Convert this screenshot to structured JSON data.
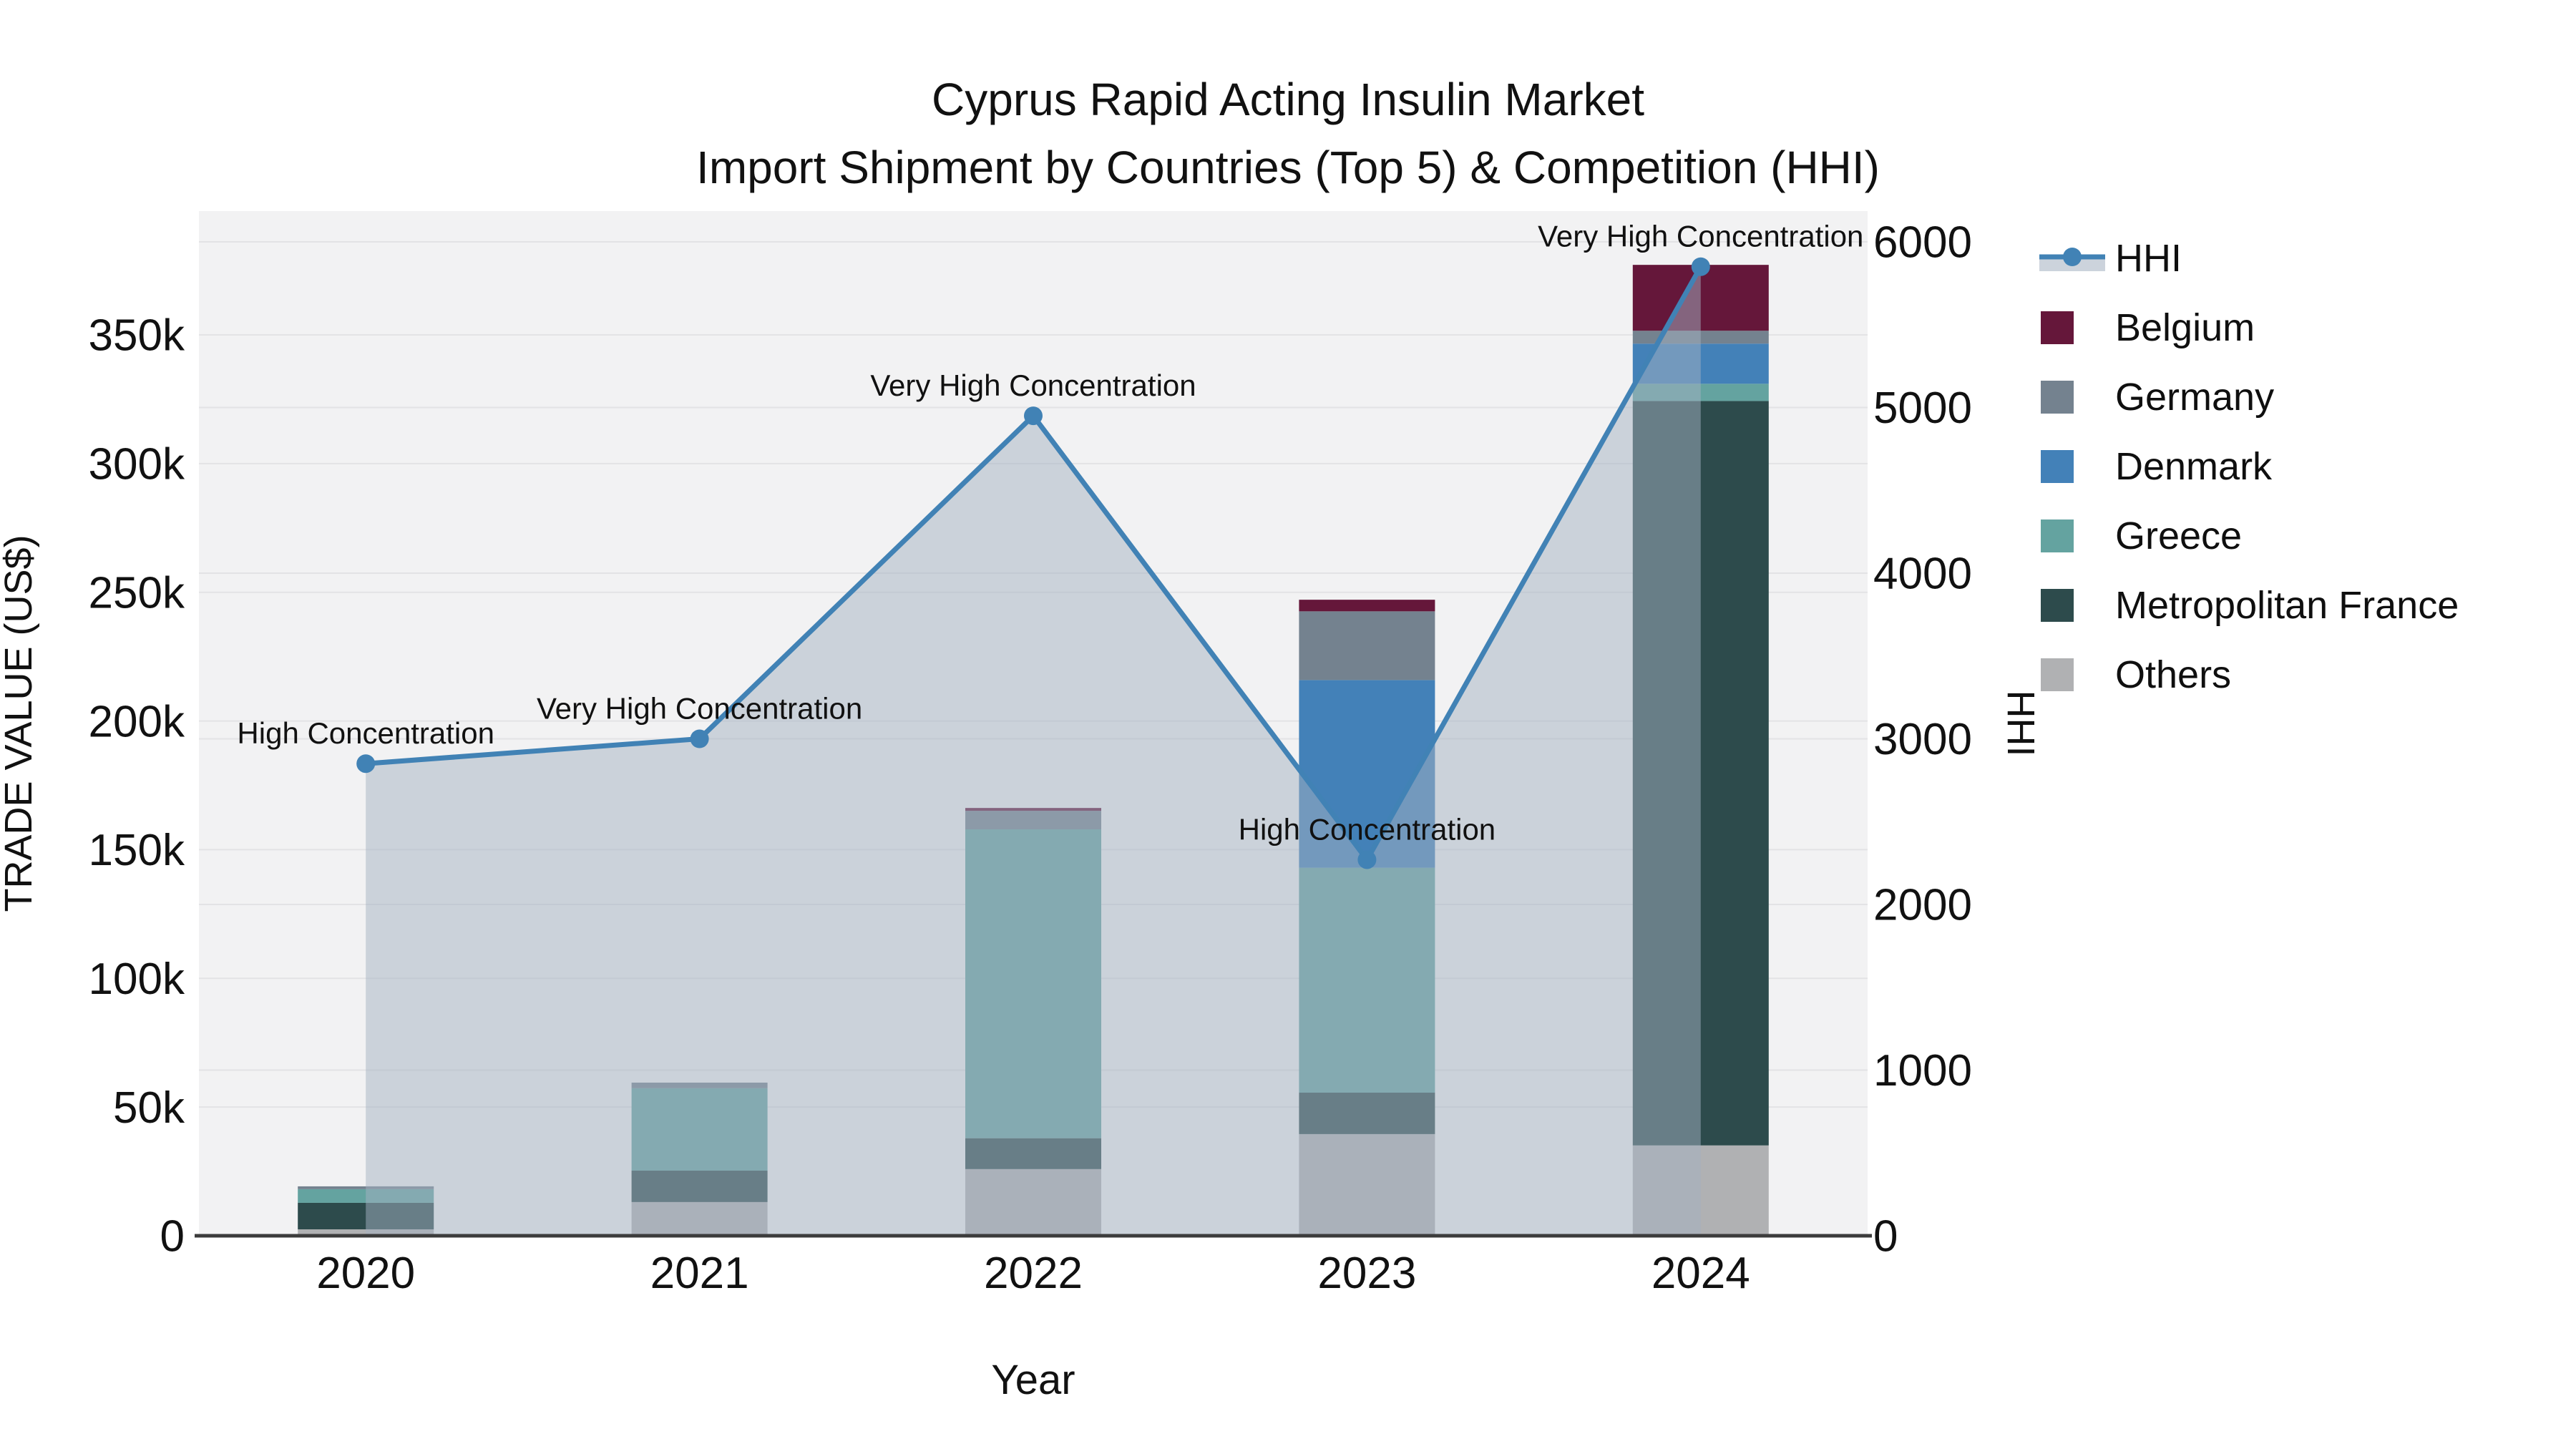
{
  "title": {
    "line1": "Cyprus Rapid Acting Insulin Market",
    "line2": "Import Shipment by Countries (Top 5) & Competition (HHI)"
  },
  "axes": {
    "x_label": "Year",
    "y_left_label": "TRADE VALUE (US$)",
    "y_right_label": "HHI",
    "x_ticks": [
      "2020",
      "2021",
      "2022",
      "2023",
      "2024"
    ],
    "y_left_ticks": [
      "0",
      "50k",
      "100k",
      "150k",
      "200k",
      "250k",
      "300k",
      "350k"
    ],
    "y_right_ticks": [
      "0",
      "1000",
      "2000",
      "3000",
      "4000",
      "5000",
      "6000"
    ]
  },
  "legend": {
    "items": [
      {
        "label": "HHI",
        "type": "line"
      },
      {
        "label": "Belgium",
        "type": "swatch",
        "color": "#65173a"
      },
      {
        "label": "Germany",
        "type": "swatch",
        "color": "#74828f"
      },
      {
        "label": "Denmark",
        "type": "swatch",
        "color": "#4381b8"
      },
      {
        "label": "Greece",
        "type": "swatch",
        "color": "#64a3a0"
      },
      {
        "label": "Metropolitan France",
        "type": "swatch",
        "color": "#2d4b4c"
      },
      {
        "label": "Others",
        "type": "swatch",
        "color": "#b0b1b3"
      }
    ]
  },
  "chart_data": {
    "type": "bar+line",
    "title": "Cyprus Rapid Acting Insulin Market",
    "subtitle": "Import Shipment by Countries (Top 5) & Competition (HHI)",
    "xlabel": "Year",
    "ylabel_left": "TRADE VALUE (US$)",
    "ylabel_right": "HHI",
    "categories": [
      "2020",
      "2021",
      "2022",
      "2023",
      "2024"
    ],
    "bar_stack_order_bottom_to_top": [
      "Others",
      "Metropolitan France",
      "Greece",
      "Denmark",
      "Germany",
      "Belgium"
    ],
    "bar_series": [
      {
        "name": "Others",
        "color": "#b0b1b3",
        "values": [
          2500,
          13100,
          25900,
          39500,
          35100
        ]
      },
      {
        "name": "Metropolitan France",
        "color": "#2d4b4c",
        "values": [
          10300,
          12200,
          12000,
          16100,
          289200
        ]
      },
      {
        "name": "Greece",
        "color": "#64a3a0",
        "values": [
          5300,
          32000,
          120000,
          87400,
          6700
        ]
      },
      {
        "name": "Denmark",
        "color": "#4381b8",
        "values": [
          0,
          0,
          0,
          72900,
          15600
        ]
      },
      {
        "name": "Germany",
        "color": "#74828f",
        "values": [
          1100,
          2200,
          7200,
          26700,
          5000
        ]
      },
      {
        "name": "Belgium",
        "color": "#65173a",
        "values": [
          0,
          0,
          1100,
          4500,
          25600
        ]
      }
    ],
    "line_series": {
      "name": "HHI",
      "color": "#4182b5",
      "area_color": "rgba(164,177,194,0.5)",
      "values": [
        2850,
        3000,
        4950,
        2270,
        5850
      ]
    },
    "annotations": [
      {
        "x": "2020",
        "text": "High Concentration"
      },
      {
        "x": "2021",
        "text": "Very High Concentration"
      },
      {
        "x": "2022",
        "text": "Very High Concentration"
      },
      {
        "x": "2023",
        "text": "High Concentration"
      },
      {
        "x": "2024",
        "text": "Very High Concentration"
      }
    ],
    "y_left": {
      "tick_values": [
        0,
        50000,
        100000,
        150000,
        200000,
        250000,
        300000,
        350000
      ],
      "max": 398000
    },
    "y_right": {
      "tick_values": [
        0,
        1000,
        2000,
        3000,
        4000,
        5000,
        6000
      ],
      "max": 6180
    },
    "grid": true,
    "legend_position": "right"
  },
  "style": {
    "plot_bg": "#f2f2f3",
    "grid_color": "#e3e3e5",
    "axis_line_color": "#3c3c3c",
    "text_color": "#111111"
  }
}
